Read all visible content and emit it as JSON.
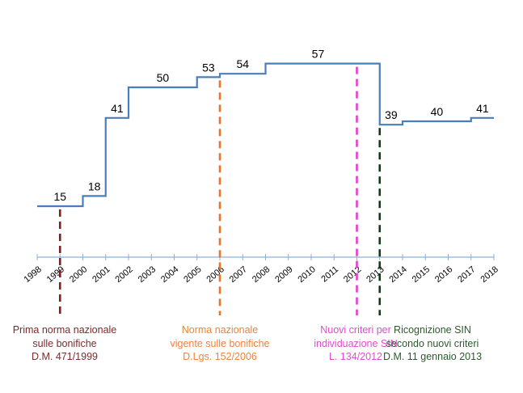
{
  "chart_data": {
    "type": "line",
    "step": true,
    "title": "",
    "xlabel": "",
    "ylabel": "",
    "x_ticks": [
      "1998",
      "1999",
      "2000",
      "2001",
      "2002",
      "2003",
      "2004",
      "2005",
      "2006",
      "2007",
      "2008",
      "2009",
      "2010",
      "2011",
      "2012",
      "2013",
      "2014",
      "2015",
      "2016",
      "2017",
      "2018"
    ],
    "xlim": [
      1998,
      2018
    ],
    "ylim": [
      0,
      60
    ],
    "series": [
      {
        "name": "SIN",
        "color": "#4a7ebb",
        "steps": [
          {
            "from": 1998,
            "to": 2000,
            "value": 15
          },
          {
            "from": 2000,
            "to": 2001,
            "value": 18
          },
          {
            "from": 2001,
            "to": 2002,
            "value": 41
          },
          {
            "from": 2002,
            "to": 2005,
            "value": 50
          },
          {
            "from": 2005,
            "to": 2006,
            "value": 53
          },
          {
            "from": 2006,
            "to": 2008,
            "value": 54
          },
          {
            "from": 2008,
            "to": 2013,
            "value": 57
          },
          {
            "from": 2013,
            "to": 2014,
            "value": 39
          },
          {
            "from": 2014,
            "to": 2017,
            "value": 40
          },
          {
            "from": 2017,
            "to": 2018,
            "value": 41
          }
        ]
      }
    ],
    "annotations": [
      {
        "year": 1999,
        "color": "#8b1a1a",
        "text_color": "#7b2b2b",
        "lines": [
          "Prima norma nazionale",
          "sulle bonifiche",
          "D.M. 471/1999"
        ]
      },
      {
        "year": 2006,
        "color": "#f07428",
        "text_color": "#f0823c",
        "lines": [
          "Norma nazionale",
          "vigente sulle bonifiche",
          "D.Lgs. 152/2006"
        ]
      },
      {
        "year": 2012,
        "color": "#e83ed4",
        "text_color": "#e04cd0",
        "lines": [
          "Nuovi criteri per",
          "individuazione SIN",
          "L. 134/2012"
        ]
      },
      {
        "year": 2013,
        "color": "#16361a",
        "text_color": "#2c5a2c",
        "lines": [
          "Ricognizione SIN",
          "secondo nuovi criteri",
          "D.M. 11 gennaio 2013"
        ]
      }
    ],
    "grid": false,
    "legend": "none"
  }
}
